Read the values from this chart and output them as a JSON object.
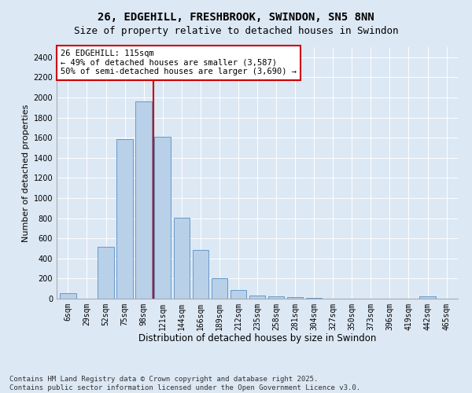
{
  "title1": "26, EDGEHILL, FRESHBROOK, SWINDON, SN5 8NN",
  "title2": "Size of property relative to detached houses in Swindon",
  "xlabel": "Distribution of detached houses by size in Swindon",
  "ylabel": "Number of detached properties",
  "bar_labels": [
    "6sqm",
    "29sqm",
    "52sqm",
    "75sqm",
    "98sqm",
    "121sqm",
    "144sqm",
    "166sqm",
    "189sqm",
    "212sqm",
    "235sqm",
    "258sqm",
    "281sqm",
    "304sqm",
    "327sqm",
    "350sqm",
    "373sqm",
    "396sqm",
    "419sqm",
    "442sqm",
    "465sqm"
  ],
  "bar_values": [
    55,
    0,
    515,
    1585,
    1960,
    1610,
    805,
    485,
    200,
    85,
    35,
    20,
    15,
    10,
    0,
    0,
    0,
    0,
    0,
    20,
    0
  ],
  "bar_color": "#b8d0e8",
  "bar_edge_color": "#6699cc",
  "vline_x": 4.5,
  "vline_color": "#cc0000",
  "annotation_text": "26 EDGEHILL: 115sqm\n← 49% of detached houses are smaller (3,587)\n50% of semi-detached houses are larger (3,690) →",
  "annotation_box_color": "#ffffff",
  "annotation_border_color": "#cc0000",
  "ylim": [
    0,
    2500
  ],
  "yticks": [
    0,
    200,
    400,
    600,
    800,
    1000,
    1200,
    1400,
    1600,
    1800,
    2000,
    2200,
    2400
  ],
  "background_color": "#dce8f4",
  "plot_bg_color": "#dce8f4",
  "footnote": "Contains HM Land Registry data © Crown copyright and database right 2025.\nContains public sector information licensed under the Open Government Licence v3.0.",
  "title1_fontsize": 10,
  "title2_fontsize": 9,
  "xlabel_fontsize": 8.5,
  "ylabel_fontsize": 8,
  "tick_fontsize": 7,
  "annot_fontsize": 7.5,
  "footnote_fontsize": 6.5
}
